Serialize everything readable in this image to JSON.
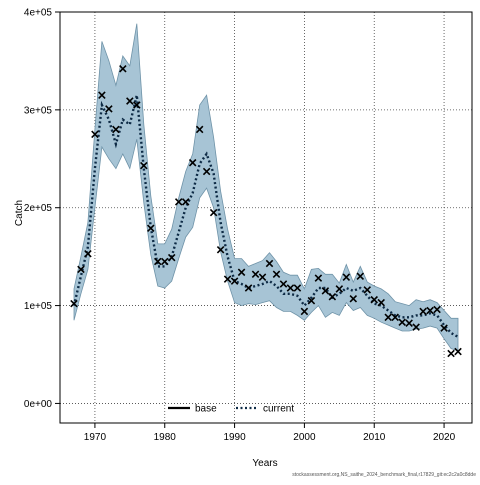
{
  "chart_data": {
    "type": "line",
    "title": "",
    "xlabel": "Years",
    "ylabel": "Catch",
    "xlim": [
      1965,
      2024
    ],
    "ylim": [
      -20000,
      400000
    ],
    "x_ticks": [
      1970,
      1980,
      1990,
      2000,
      2010,
      2020
    ],
    "x_tick_labels": [
      "1970",
      "1980",
      "1990",
      "2000",
      "2010",
      "2020"
    ],
    "y_ticks": [
      0,
      100000,
      200000,
      300000,
      400000
    ],
    "y_tick_labels": [
      "0e+00",
      "1e+05",
      "2e+05",
      "3e+05",
      "4e+05"
    ],
    "grid": true,
    "legend_position": "bottom-center",
    "legend": [
      {
        "label": "base",
        "style": "solid",
        "color": "#000000"
      },
      {
        "label": "current",
        "style": "dotted",
        "color": "#1f4e79"
      }
    ],
    "colors": {
      "band": "#a7c4d5",
      "band_edge": "#6f93a8",
      "points": "#000000"
    },
    "series": [
      {
        "name": "current",
        "x": [
          1967,
          1968,
          1969,
          1970,
          1971,
          1972,
          1973,
          1974,
          1975,
          1976,
          1977,
          1978,
          1979,
          1980,
          1981,
          1982,
          1983,
          1984,
          1985,
          1986,
          1987,
          1988,
          1989,
          1990,
          1991,
          1992,
          1993,
          1994,
          1995,
          1996,
          1997,
          1998,
          1999,
          2000,
          2001,
          2002,
          2003,
          2004,
          2005,
          2006,
          2007,
          2008,
          2009,
          2010,
          2011,
          2012,
          2013,
          2014,
          2015,
          2016,
          2017,
          2018,
          2019,
          2020,
          2021,
          2022
        ],
        "y": [
          100000,
          130000,
          160000,
          240000,
          305000,
          290000,
          265000,
          290000,
          285000,
          315000,
          240000,
          180000,
          140000,
          140000,
          150000,
          175000,
          200000,
          215000,
          245000,
          255000,
          235000,
          185000,
          150000,
          125000,
          122000,
          118000,
          120000,
          122000,
          125000,
          120000,
          112000,
          112000,
          110000,
          100000,
          108000,
          118000,
          118000,
          108000,
          112000,
          118000,
          115000,
          118000,
          110000,
          102000,
          100000,
          95000,
          90000,
          88000,
          88000,
          90000,
          90000,
          92000,
          90000,
          80000,
          72000,
          68000
        ],
        "lower": [
          85000,
          112000,
          137000,
          200000,
          262000,
          250000,
          240000,
          255000,
          240000,
          270000,
          205000,
          152000,
          120000,
          118000,
          125000,
          148000,
          170000,
          180000,
          210000,
          220000,
          200000,
          155000,
          125000,
          103000,
          100000,
          102000,
          101000,
          103000,
          105000,
          98000,
          94000,
          94000,
          90000,
          85000,
          93000,
          100000,
          88000,
          93000,
          90000,
          103000,
          95000,
          98000,
          90000,
          87000,
          83000,
          80000,
          77000,
          74000,
          74000,
          76000,
          77000,
          79000,
          77000,
          66000,
          56000,
          54000
        ],
        "upper": [
          117000,
          150000,
          185000,
          280000,
          370000,
          350000,
          325000,
          355000,
          345000,
          388000,
          285000,
          212000,
          163000,
          163000,
          178000,
          210000,
          237000,
          255000,
          305000,
          315000,
          272000,
          217000,
          178000,
          148000,
          148000,
          140000,
          143000,
          146000,
          154000,
          145000,
          134000,
          131000,
          131000,
          117000,
          137000,
          138000,
          132000,
          132000,
          123000,
          142000,
          124000,
          140000,
          124000,
          120000,
          117000,
          112000,
          104000,
          102000,
          100000,
          106000,
          104000,
          106000,
          103000,
          95000,
          87000,
          87000
        ]
      }
    ],
    "points": {
      "x": [
        1967,
        1968,
        1969,
        1970,
        1971,
        1972,
        1973,
        1974,
        1975,
        1976,
        1977,
        1978,
        1979,
        1980,
        1981,
        1982,
        1983,
        1984,
        1985,
        1986,
        1987,
        1988,
        1989,
        1990,
        1991,
        1992,
        1993,
        1994,
        1995,
        1996,
        1997,
        1998,
        1999,
        2000,
        2001,
        2002,
        2003,
        2004,
        2005,
        2006,
        2007,
        2008,
        2009,
        2010,
        2011,
        2012,
        2013,
        2014,
        2015,
        2016,
        2017,
        2018,
        2019,
        2020,
        2021,
        2022
      ],
      "y": [
        102000,
        137000,
        153000,
        275000,
        315000,
        301000,
        280000,
        342000,
        309000,
        305000,
        243000,
        179000,
        145000,
        145000,
        149000,
        206000,
        206000,
        246000,
        280000,
        237000,
        195000,
        157000,
        127000,
        125000,
        134000,
        118000,
        132000,
        129000,
        143000,
        132000,
        122000,
        118000,
        118000,
        94000,
        105000,
        128000,
        115000,
        109000,
        117000,
        129000,
        107000,
        130000,
        116000,
        106000,
        103000,
        88000,
        88000,
        83000,
        82000,
        78000,
        94000,
        95000,
        96000,
        77000,
        51000,
        53000
      ]
    }
  },
  "footer_text": "stockassessment.org,NS_saithe_2024_benchmark_final,r17829_git:ec2c2a0c8dde"
}
